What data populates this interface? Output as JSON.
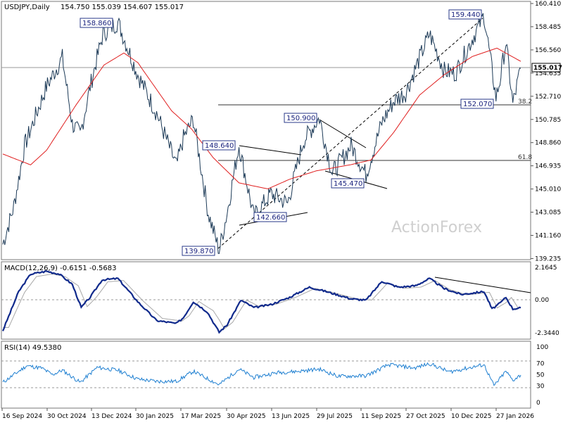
{
  "header": {
    "symbol": "USDJPY,Daily",
    "ohlc": "154.750 155.039 154.607 155.017"
  },
  "watermark": "ActionForex",
  "price_axis": {
    "ticks": [
      "160.410",
      "158.485",
      "156.560",
      "154.635",
      "152.710",
      "150.785",
      "148.860",
      "146.935",
      "145.010",
      "143.085",
      "141.160",
      "139.235"
    ],
    "current_price_label": "155.017"
  },
  "annotations": {
    "high_2024": "158.860",
    "low_2025": "139.870",
    "peak_jul": "150.900",
    "peak_apr": "148.640",
    "low_may": "142.660",
    "low_aug": "145.470",
    "high_2026": "159.440",
    "support_feb": "152.070",
    "fib_382": "38.2",
    "fib_618": "61.8"
  },
  "macd": {
    "label": "MACD(12,26,9) -0.6151 -0.5683",
    "ticks": [
      "2.1645",
      "0.00",
      "-2.3440"
    ]
  },
  "rsi": {
    "label": "RSI(14) 49.5380",
    "ticks": [
      "100",
      "70",
      "50",
      "30",
      "0"
    ]
  },
  "x_axis": {
    "labels": [
      "16 Sep 2024",
      "30 Oct 2024",
      "13 Dec 2024",
      "30 Jan 2025",
      "17 Mar 2025",
      "30 Apr 2025",
      "13 Jun 2025",
      "29 Jul 2025",
      "11 Sep 2025",
      "27 Oct 2025",
      "10 Dec 2025",
      "27 Jan 2026"
    ]
  },
  "chart_data": {
    "type": "line",
    "title": "USDJPY,Daily",
    "price_range": [
      139.235,
      160.41
    ],
    "price_anchors": [
      {
        "date": "2024-09-16",
        "price": 140.4
      },
      {
        "date": "2024-09-27",
        "price": 143.5
      },
      {
        "date": "2024-10-08",
        "price": 148.6
      },
      {
        "date": "2024-10-30",
        "price": 153.5
      },
      {
        "date": "2024-11-15",
        "price": 155.9
      },
      {
        "date": "2024-11-25",
        "price": 150.4
      },
      {
        "date": "2024-12-03",
        "price": 149.5
      },
      {
        "date": "2024-12-13",
        "price": 153.5
      },
      {
        "date": "2024-12-26",
        "price": 157.9
      },
      {
        "date": "2025-01-10",
        "price": 158.86
      },
      {
        "date": "2025-01-30",
        "price": 154.5
      },
      {
        "date": "2025-02-18",
        "price": 151.3
      },
      {
        "date": "2025-03-10",
        "price": 146.9
      },
      {
        "date": "2025-03-17",
        "price": 149.2
      },
      {
        "date": "2025-03-27",
        "price": 150.8
      },
      {
        "date": "2025-04-11",
        "price": 143.0
      },
      {
        "date": "2025-04-22",
        "price": 139.87
      },
      {
        "date": "2025-04-30",
        "price": 143.0
      },
      {
        "date": "2025-05-12",
        "price": 148.64
      },
      {
        "date": "2025-05-27",
        "price": 142.66
      },
      {
        "date": "2025-06-13",
        "price": 144.6
      },
      {
        "date": "2025-06-30",
        "price": 143.8
      },
      {
        "date": "2025-07-16",
        "price": 149.0
      },
      {
        "date": "2025-08-01",
        "price": 150.9
      },
      {
        "date": "2025-08-14",
        "price": 146.3
      },
      {
        "date": "2025-09-02",
        "price": 148.6
      },
      {
        "date": "2025-09-17",
        "price": 146.2
      },
      {
        "date": "2025-10-03",
        "price": 150.5
      },
      {
        "date": "2025-10-15",
        "price": 152.3
      },
      {
        "date": "2025-10-27",
        "price": 153.0
      },
      {
        "date": "2025-11-20",
        "price": 157.9
      },
      {
        "date": "2025-12-05",
        "price": 154.8
      },
      {
        "date": "2025-12-16",
        "price": 154.6
      },
      {
        "date": "2026-01-14",
        "price": 159.44
      },
      {
        "date": "2026-01-26",
        "price": 152.6
      },
      {
        "date": "2026-01-30",
        "price": 154.0
      },
      {
        "date": "2026-02-05",
        "price": 157.2
      },
      {
        "date": "2026-02-12",
        "price": 152.07
      },
      {
        "date": "2026-02-20",
        "price": 155.017
      }
    ],
    "moving_average_anchors": [
      {
        "date": "2024-09-16",
        "price": 147.9
      },
      {
        "date": "2024-10-14",
        "price": 147.0
      },
      {
        "date": "2024-10-30",
        "price": 148.2
      },
      {
        "date": "2024-11-29",
        "price": 152.0
      },
      {
        "date": "2024-12-27",
        "price": 155.3
      },
      {
        "date": "2025-01-16",
        "price": 156.3
      },
      {
        "date": "2025-01-30",
        "price": 155.5
      },
      {
        "date": "2025-03-05",
        "price": 151.5
      },
      {
        "date": "2025-03-25",
        "price": 150.0
      },
      {
        "date": "2025-04-16",
        "price": 147.6
      },
      {
        "date": "2025-05-12",
        "price": 145.5
      },
      {
        "date": "2025-06-10",
        "price": 145.0
      },
      {
        "date": "2025-07-02",
        "price": 145.8
      },
      {
        "date": "2025-07-29",
        "price": 146.5
      },
      {
        "date": "2025-09-01",
        "price": 147.0
      },
      {
        "date": "2025-09-22",
        "price": 147.4
      },
      {
        "date": "2025-10-15",
        "price": 149.7
      },
      {
        "date": "2025-11-10",
        "price": 152.8
      },
      {
        "date": "2025-12-05",
        "price": 154.5
      },
      {
        "date": "2026-01-02",
        "price": 156.0
      },
      {
        "date": "2026-01-27",
        "price": 156.7
      },
      {
        "date": "2026-02-20",
        "price": 155.6
      }
    ],
    "horizontal_levels": [
      155.017,
      152.07,
      147.25
    ],
    "macd_range": [
      -2.344,
      2.1645
    ],
    "macd_anchors": [
      {
        "date": "2024-09-16",
        "price": -2.2
      },
      {
        "date": "2024-10-02",
        "price": 0.5
      },
      {
        "date": "2024-10-14",
        "price": 1.7
      },
      {
        "date": "2024-10-30",
        "price": 1.9
      },
      {
        "date": "2024-11-12",
        "price": 1.7
      },
      {
        "date": "2024-11-25",
        "price": 1.0
      },
      {
        "date": "2024-12-04",
        "price": -0.6
      },
      {
        "date": "2024-12-13",
        "price": 0.1
      },
      {
        "date": "2024-12-25",
        "price": 1.3
      },
      {
        "date": "2025-01-10",
        "price": 1.4
      },
      {
        "date": "2025-01-30",
        "price": -0.2
      },
      {
        "date": "2025-02-18",
        "price": -1.5
      },
      {
        "date": "2025-03-10",
        "price": -1.7
      },
      {
        "date": "2025-03-17",
        "price": -1.3
      },
      {
        "date": "2025-03-27",
        "price": -0.2
      },
      {
        "date": "2025-04-10",
        "price": -0.9
      },
      {
        "date": "2025-04-22",
        "price": -2.3
      },
      {
        "date": "2025-04-30",
        "price": -1.8
      },
      {
        "date": "2025-05-14",
        "price": -0.1
      },
      {
        "date": "2025-05-27",
        "price": -0.6
      },
      {
        "date": "2025-06-13",
        "price": -0.4
      },
      {
        "date": "2025-07-02",
        "price": 0.1
      },
      {
        "date": "2025-07-22",
        "price": 0.8
      },
      {
        "date": "2025-08-08",
        "price": 0.5
      },
      {
        "date": "2025-09-02",
        "price": 0.0
      },
      {
        "date": "2025-09-17",
        "price": -0.1
      },
      {
        "date": "2025-10-03",
        "price": 1.2
      },
      {
        "date": "2025-10-20",
        "price": 0.8
      },
      {
        "date": "2025-11-06",
        "price": 0.9
      },
      {
        "date": "2025-11-20",
        "price": 1.4
      },
      {
        "date": "2025-12-05",
        "price": 0.7
      },
      {
        "date": "2025-12-22",
        "price": 0.3
      },
      {
        "date": "2026-01-14",
        "price": 0.5
      },
      {
        "date": "2026-01-22",
        "price": -0.7
      },
      {
        "date": "2026-01-30",
        "price": -0.3
      },
      {
        "date": "2026-02-05",
        "price": 0.1
      },
      {
        "date": "2026-02-12",
        "price": -0.7
      },
      {
        "date": "2026-02-20",
        "price": -0.6151
      }
    ],
    "macd_signal_last": -0.5683,
    "rsi_range": [
      0,
      100
    ],
    "rsi_anchors": [
      {
        "date": "2024-09-16",
        "price": 36
      },
      {
        "date": "2024-10-10",
        "price": 66
      },
      {
        "date": "2024-10-25",
        "price": 62
      },
      {
        "date": "2024-11-05",
        "price": 50
      },
      {
        "date": "2024-11-15",
        "price": 58
      },
      {
        "date": "2024-12-03",
        "price": 36
      },
      {
        "date": "2024-12-20",
        "price": 63
      },
      {
        "date": "2025-01-10",
        "price": 58
      },
      {
        "date": "2025-01-30",
        "price": 42
      },
      {
        "date": "2025-02-18",
        "price": 38
      },
      {
        "date": "2025-03-10",
        "price": 38
      },
      {
        "date": "2025-03-27",
        "price": 56
      },
      {
        "date": "2025-04-22",
        "price": 32
      },
      {
        "date": "2025-05-12",
        "price": 60
      },
      {
        "date": "2025-05-27",
        "price": 45
      },
      {
        "date": "2025-06-20",
        "price": 54
      },
      {
        "date": "2025-07-10",
        "price": 56
      },
      {
        "date": "2025-08-01",
        "price": 60
      },
      {
        "date": "2025-08-20",
        "price": 47
      },
      {
        "date": "2025-09-17",
        "price": 48
      },
      {
        "date": "2025-10-10",
        "price": 68
      },
      {
        "date": "2025-11-05",
        "price": 62
      },
      {
        "date": "2025-11-20",
        "price": 70
      },
      {
        "date": "2025-12-10",
        "price": 55
      },
      {
        "date": "2026-01-14",
        "price": 68
      },
      {
        "date": "2026-01-24",
        "price": 30
      },
      {
        "date": "2026-02-05",
        "price": 56
      },
      {
        "date": "2026-02-12",
        "price": 40
      },
      {
        "date": "2026-02-20",
        "price": 49.538
      }
    ]
  }
}
